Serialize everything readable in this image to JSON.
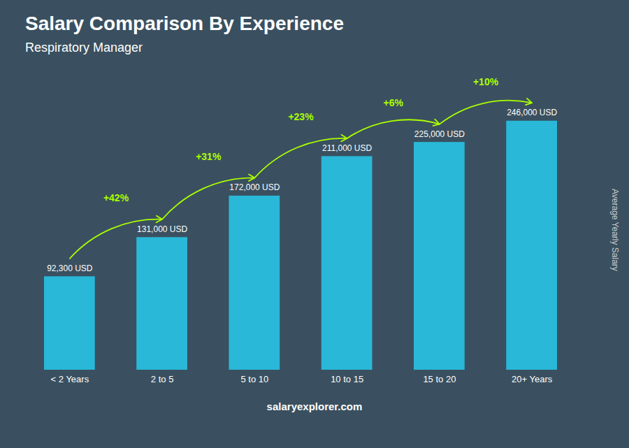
{
  "chart_data": {
    "type": "bar",
    "title": "Salary Comparison By Experience",
    "subtitle": "Respiratory Manager",
    "y_label": "Average Yearly Salary",
    "footer": "salaryexplorer.com",
    "categories": [
      "< 2 Years",
      "2 to 5",
      "5 to 10",
      "10 to 15",
      "15 to 20",
      "20+ Years"
    ],
    "values": [
      92300,
      131000,
      172000,
      211000,
      225000,
      246000
    ],
    "value_labels": [
      "92,300 USD",
      "131,000 USD",
      "172,000 USD",
      "211,000 USD",
      "225,000 USD",
      "246,000 USD"
    ],
    "data_labels": true,
    "annotations": [
      "+42%",
      "+31%",
      "+23%",
      "+6%",
      "+10%"
    ],
    "color": "#29b8d8",
    "ylim": [
      0,
      290000
    ],
    "tick_labels": "x",
    "grid": false
  }
}
